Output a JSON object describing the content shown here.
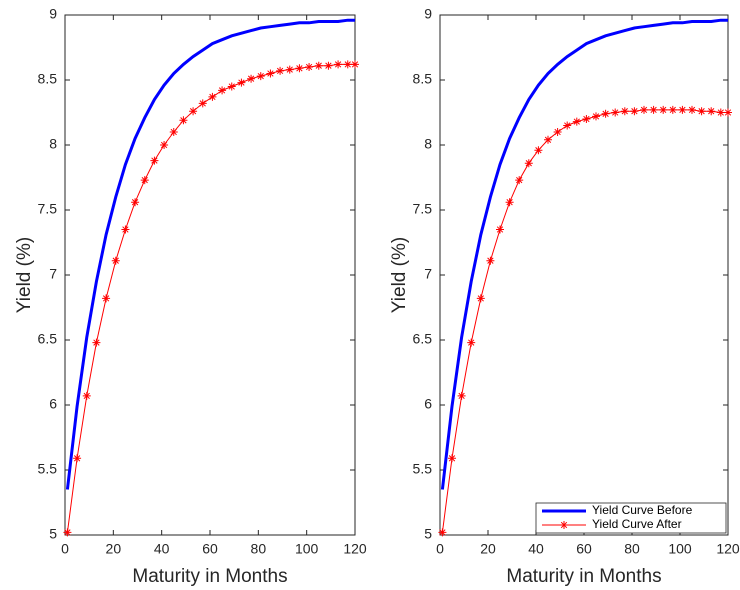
{
  "chart_data": [
    {
      "type": "line",
      "xlabel": "Maturity in Months",
      "ylabel": "Yield (%)",
      "x": [
        1,
        5,
        9,
        13,
        17,
        21,
        25,
        29,
        33,
        37,
        41,
        45,
        49,
        53,
        57,
        61,
        65,
        69,
        73,
        77,
        81,
        85,
        89,
        93,
        97,
        101,
        105,
        109,
        113,
        117,
        120
      ],
      "series": [
        {
          "color": "#0000ff",
          "marker": "none",
          "values": [
            5.35,
            5.99,
            6.52,
            6.95,
            7.31,
            7.6,
            7.85,
            8.05,
            8.21,
            8.35,
            8.46,
            8.55,
            8.62,
            8.68,
            8.73,
            8.78,
            8.81,
            8.84,
            8.86,
            8.88,
            8.9,
            8.91,
            8.92,
            8.93,
            8.94,
            8.94,
            8.95,
            8.95,
            8.95,
            8.96,
            8.96
          ]
        },
        {
          "color": "#ff0000",
          "marker": "asterisk",
          "values": [
            5.02,
            5.59,
            6.07,
            6.48,
            6.82,
            7.11,
            7.35,
            7.56,
            7.73,
            7.88,
            8.0,
            8.1,
            8.19,
            8.26,
            8.32,
            8.37,
            8.42,
            8.45,
            8.48,
            8.51,
            8.53,
            8.55,
            8.57,
            8.58,
            8.59,
            8.6,
            8.61,
            8.61,
            8.62,
            8.62,
            8.62
          ]
        }
      ],
      "xlim": [
        0,
        120
      ],
      "xticks": [
        0,
        20,
        40,
        60,
        80,
        100,
        120
      ],
      "ylim": [
        5,
        9
      ],
      "yticks": [
        5,
        5.5,
        6,
        6.5,
        7,
        7.5,
        8,
        8.5,
        9
      ],
      "legend": false
    },
    {
      "type": "line",
      "xlabel": "Maturity in Months",
      "ylabel": "Yield (%)",
      "x": [
        1,
        5,
        9,
        13,
        17,
        21,
        25,
        29,
        33,
        37,
        41,
        45,
        49,
        53,
        57,
        61,
        65,
        69,
        73,
        77,
        81,
        85,
        89,
        93,
        97,
        101,
        105,
        109,
        113,
        117,
        120
      ],
      "series": [
        {
          "name": "Yield Curve Before",
          "color": "#0000ff",
          "marker": "none",
          "values": [
            5.35,
            5.99,
            6.52,
            6.95,
            7.31,
            7.6,
            7.85,
            8.05,
            8.21,
            8.35,
            8.46,
            8.55,
            8.62,
            8.68,
            8.73,
            8.78,
            8.81,
            8.84,
            8.86,
            8.88,
            8.9,
            8.91,
            8.92,
            8.93,
            8.94,
            8.94,
            8.95,
            8.95,
            8.95,
            8.96,
            8.96
          ]
        },
        {
          "name": "Yield Curve After",
          "color": "#ff0000",
          "marker": "asterisk",
          "values": [
            5.02,
            5.59,
            6.07,
            6.48,
            6.82,
            7.11,
            7.35,
            7.56,
            7.73,
            7.86,
            7.96,
            8.04,
            8.1,
            8.15,
            8.18,
            8.2,
            8.22,
            8.24,
            8.25,
            8.26,
            8.26,
            8.27,
            8.27,
            8.27,
            8.27,
            8.27,
            8.27,
            8.26,
            8.26,
            8.25,
            8.25
          ]
        }
      ],
      "xlim": [
        0,
        120
      ],
      "xticks": [
        0,
        20,
        40,
        60,
        80,
        100,
        120
      ],
      "ylim": [
        5,
        9
      ],
      "yticks": [
        5,
        5.5,
        6,
        6.5,
        7,
        7.5,
        8,
        8.5,
        9
      ],
      "legend": "lower right"
    }
  ]
}
